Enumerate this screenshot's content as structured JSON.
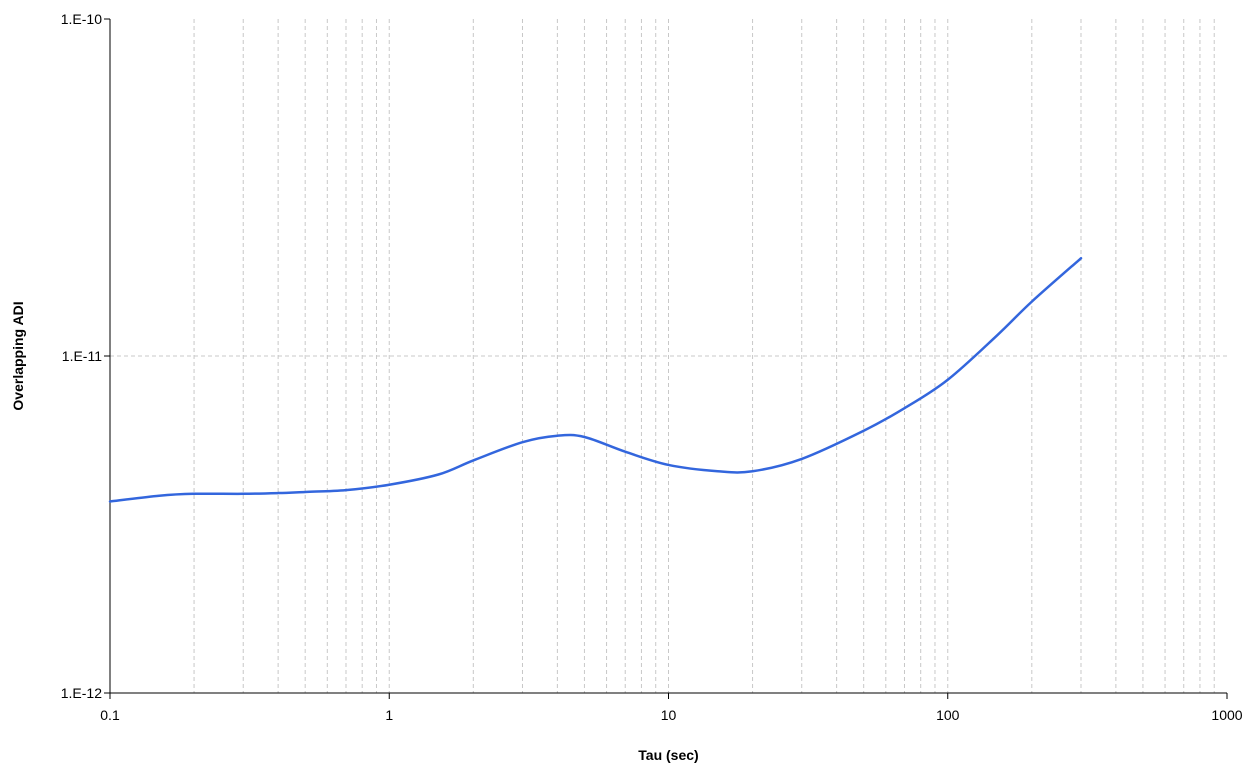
{
  "chart_data": {
    "type": "line",
    "title": "",
    "xlabel": "Tau (sec)",
    "ylabel": "Overlapping ADI",
    "x_scale": "log",
    "y_scale": "log",
    "xlim": [
      0.1,
      1000
    ],
    "ylim": [
      1e-12,
      1e-10
    ],
    "x_ticks": [
      0.1,
      1,
      10,
      100,
      1000
    ],
    "x_tick_labels": [
      "0.1",
      "1",
      "10",
      "100",
      "1000"
    ],
    "y_ticks": [
      1e-12,
      1e-11,
      1e-10
    ],
    "y_tick_labels": [
      "1.E-12",
      "1.E-11",
      "1.E-10"
    ],
    "grid": true,
    "legend": "none",
    "series": [
      {
        "color": "#3366dd",
        "x": [
          0.1,
          0.15,
          0.2,
          0.3,
          0.4,
          0.5,
          0.7,
          1,
          1.5,
          2,
          3,
          4,
          5,
          7,
          10,
          15,
          20,
          30,
          50,
          70,
          100,
          150,
          200,
          300
        ],
        "y": [
          3.7e-12,
          3.85e-12,
          3.9e-12,
          3.9e-12,
          3.92e-12,
          3.95e-12,
          4e-12,
          4.15e-12,
          4.45e-12,
          4.9e-12,
          5.55e-12,
          5.8e-12,
          5.75e-12,
          5.2e-12,
          4.75e-12,
          4.55e-12,
          4.55e-12,
          4.95e-12,
          6e-12,
          7e-12,
          8.5e-12,
          1.15e-11,
          1.45e-11,
          1.95e-11
        ]
      }
    ]
  }
}
